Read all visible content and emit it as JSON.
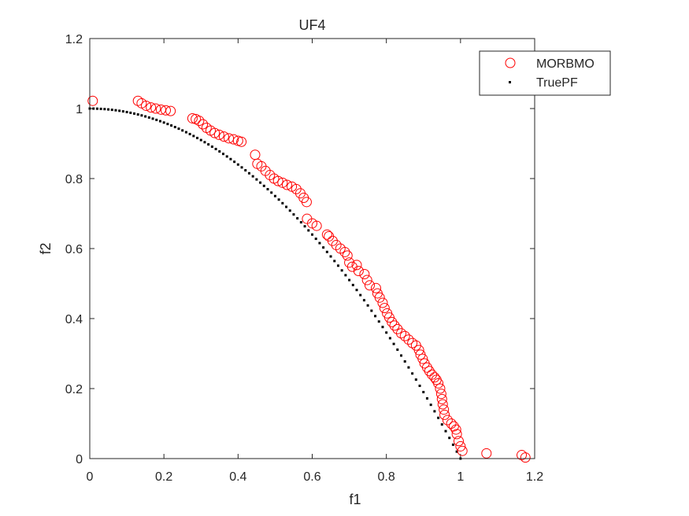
{
  "chart_data": {
    "type": "scatter",
    "title": "UF4",
    "xlabel": "f1",
    "ylabel": "f2",
    "xlim": [
      0,
      1.2
    ],
    "ylim": [
      0,
      1.2
    ],
    "xticks": [
      0,
      0.2,
      0.4,
      0.6,
      0.8,
      1,
      1.2
    ],
    "yticks": [
      0,
      0.2,
      0.4,
      0.6,
      0.8,
      1,
      1.2
    ],
    "xtick_labels": [
      "0",
      "0.2",
      "0.4",
      "0.6",
      "0.8",
      "1",
      "1.2"
    ],
    "ytick_labels": [
      "0",
      "0.2",
      "0.4",
      "0.6",
      "0.8",
      "1",
      "1.2"
    ],
    "grid": false,
    "legend_position": "top-right",
    "series": [
      {
        "name": "MORBMO",
        "marker": "open-circle",
        "color": "#ff0000",
        "points": [
          [
            0.008,
            1.022
          ],
          [
            0.13,
            1.022
          ],
          [
            0.14,
            1.015
          ],
          [
            0.152,
            1.008
          ],
          [
            0.165,
            1.003
          ],
          [
            0.178,
            1.0
          ],
          [
            0.192,
            0.997
          ],
          [
            0.205,
            0.995
          ],
          [
            0.218,
            0.993
          ],
          [
            0.277,
            0.972
          ],
          [
            0.286,
            0.97
          ],
          [
            0.295,
            0.965
          ],
          [
            0.305,
            0.955
          ],
          [
            0.315,
            0.945
          ],
          [
            0.326,
            0.937
          ],
          [
            0.337,
            0.93
          ],
          [
            0.349,
            0.925
          ],
          [
            0.362,
            0.92
          ],
          [
            0.375,
            0.915
          ],
          [
            0.388,
            0.912
          ],
          [
            0.4,
            0.908
          ],
          [
            0.409,
            0.905
          ],
          [
            0.446,
            0.868
          ],
          [
            0.452,
            0.842
          ],
          [
            0.463,
            0.835
          ],
          [
            0.474,
            0.822
          ],
          [
            0.486,
            0.81
          ],
          [
            0.497,
            0.8
          ],
          [
            0.508,
            0.793
          ],
          [
            0.52,
            0.788
          ],
          [
            0.532,
            0.782
          ],
          [
            0.545,
            0.777
          ],
          [
            0.557,
            0.77
          ],
          [
            0.568,
            0.758
          ],
          [
            0.577,
            0.745
          ],
          [
            0.585,
            0.733
          ],
          [
            0.586,
            0.685
          ],
          [
            0.6,
            0.672
          ],
          [
            0.612,
            0.665
          ],
          [
            0.64,
            0.64
          ],
          [
            0.645,
            0.635
          ],
          [
            0.655,
            0.622
          ],
          [
            0.665,
            0.61
          ],
          [
            0.676,
            0.6
          ],
          [
            0.688,
            0.59
          ],
          [
            0.695,
            0.58
          ],
          [
            0.7,
            0.56
          ],
          [
            0.708,
            0.548
          ],
          [
            0.72,
            0.553
          ],
          [
            0.725,
            0.536
          ],
          [
            0.741,
            0.527
          ],
          [
            0.748,
            0.51
          ],
          [
            0.755,
            0.495
          ],
          [
            0.772,
            0.487
          ],
          [
            0.776,
            0.472
          ],
          [
            0.782,
            0.46
          ],
          [
            0.79,
            0.445
          ],
          [
            0.795,
            0.43
          ],
          [
            0.802,
            0.415
          ],
          [
            0.808,
            0.403
          ],
          [
            0.815,
            0.39
          ],
          [
            0.822,
            0.38
          ],
          [
            0.83,
            0.37
          ],
          [
            0.84,
            0.358
          ],
          [
            0.85,
            0.35
          ],
          [
            0.86,
            0.34
          ],
          [
            0.87,
            0.33
          ],
          [
            0.88,
            0.323
          ],
          [
            0.888,
            0.31
          ],
          [
            0.892,
            0.297
          ],
          [
            0.898,
            0.285
          ],
          [
            0.903,
            0.272
          ],
          [
            0.91,
            0.26
          ],
          [
            0.916,
            0.25
          ],
          [
            0.923,
            0.24
          ],
          [
            0.93,
            0.232
          ],
          [
            0.935,
            0.225
          ],
          [
            0.94,
            0.215
          ],
          [
            0.945,
            0.2
          ],
          [
            0.948,
            0.185
          ],
          [
            0.95,
            0.17
          ],
          [
            0.952,
            0.155
          ],
          [
            0.955,
            0.14
          ],
          [
            0.957,
            0.125
          ],
          [
            0.965,
            0.11
          ],
          [
            0.975,
            0.1
          ],
          [
            0.982,
            0.092
          ],
          [
            0.988,
            0.083
          ],
          [
            0.99,
            0.07
          ],
          [
            0.995,
            0.05
          ],
          [
            1.0,
            0.035
          ],
          [
            1.005,
            0.022
          ],
          [
            1.07,
            0.015
          ],
          [
            1.165,
            0.01
          ],
          [
            1.175,
            0.003
          ]
        ]
      },
      {
        "name": "TruePF",
        "marker": "dot",
        "color": "#000000",
        "equation": "f2 = 1 - f1^2",
        "x_range": [
          0,
          1
        ],
        "samples": 100
      }
    ]
  }
}
